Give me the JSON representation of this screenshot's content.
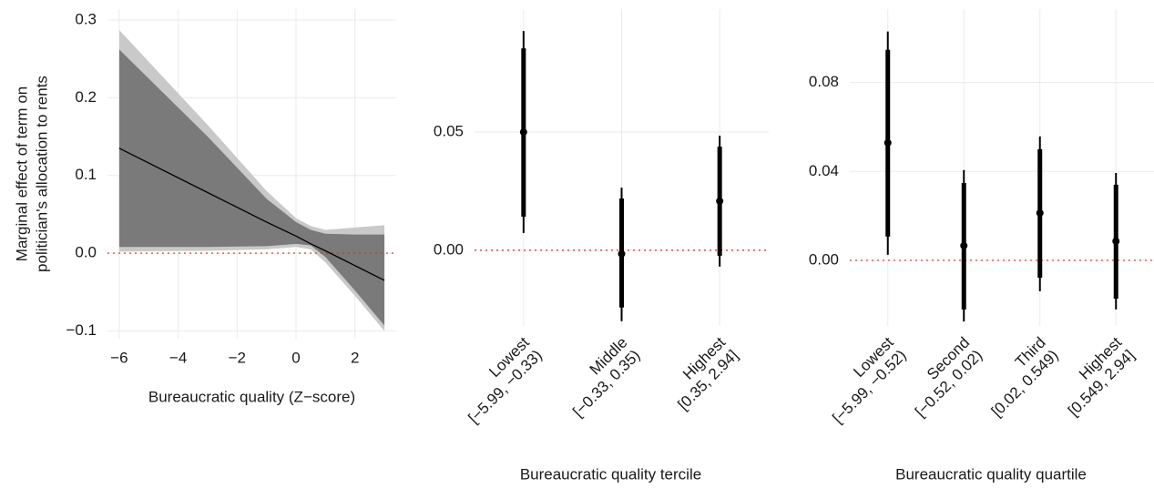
{
  "chart_data": [
    {
      "type": "line",
      "y_label": [
        "Marginal effect of term on",
        "politician's allocation to rents"
      ],
      "x_label": "Bureaucratic quality (Z−score)",
      "x": [
        -6,
        -3,
        -1,
        0,
        0.5,
        1,
        2,
        3
      ],
      "estimate": {
        "values": [
          0.135,
          0.078,
          0.04,
          0.022,
          0.012,
          0.003,
          -0.016,
          -0.035
        ],
        "color": "#000000"
      },
      "bands": [
        {
          "upper": [
            0.287,
            0.165,
            0.08,
            0.045,
            0.035,
            0.03,
            0.033,
            0.036
          ],
          "lower": [
            0.002,
            0.003,
            0.005,
            0.008,
            0.005,
            -0.012,
            -0.055,
            -0.1
          ],
          "color": "#c9c9c9"
        },
        {
          "upper": [
            0.262,
            0.15,
            0.07,
            0.04,
            0.03,
            0.025,
            0.024,
            0.024
          ],
          "lower": [
            0.008,
            0.008,
            0.009,
            0.012,
            0.01,
            -0.005,
            -0.048,
            -0.093
          ],
          "color": "#7a7a7a"
        }
      ],
      "xlim": [
        -6.4,
        3.4
      ],
      "ylim": [
        -0.11,
        0.314
      ],
      "xticks": [
        {
          "value": -6,
          "label": "−6"
        },
        {
          "value": -4,
          "label": "−4"
        },
        {
          "value": -2,
          "label": "−2"
        },
        0,
        2
      ],
      "yticks": [
        {
          "value": -0.1,
          "label": "−0.1"
        },
        {
          "value": 0,
          "label": "0.0"
        },
        0.1,
        0.2,
        0.3
      ],
      "grid": true,
      "reference_line": {
        "value": 0,
        "color": "#d62728"
      }
    },
    {
      "type": "pointrange",
      "x_label": "Bureaucratic quality tercile",
      "categories": [
        "Lowest",
        "Middle",
        "Highest"
      ],
      "category_ranges": [
        "[−5.99, −0.33)",
        "[−0.33, 0.35)",
        "[0.35, 2.94]"
      ],
      "estimates": [
        0.05,
        -0.0015,
        0.0208
      ],
      "inner_lower": [
        0.0142,
        -0.0242,
        -0.0023
      ],
      "inner_upper": [
        0.0854,
        0.0219,
        0.0438
      ],
      "outer_lower": [
        0.0073,
        -0.03,
        -0.0069
      ],
      "outer_upper": [
        0.0927,
        0.0265,
        0.0485
      ],
      "color": "#000000",
      "ylim": [
        -0.032,
        0.102
      ],
      "yticks": [
        {
          "value": 0,
          "label": "0.00"
        },
        0.05
      ],
      "grid": true,
      "reference_line": {
        "value": 0,
        "color": "#d62728"
      }
    },
    {
      "type": "pointrange",
      "x_label": "Bureaucratic quality quartile",
      "categories": [
        "Lowest",
        "Second",
        "Third",
        "Highest"
      ],
      "category_ranges": [
        "[−5.99, −0.52)",
        "[−0.52, 0.02)",
        "[0.02, 0.549)",
        "[0.549, 2.94]"
      ],
      "estimates": [
        0.0529,
        0.0066,
        0.0213,
        0.0086
      ],
      "inner_lower": [
        0.0107,
        -0.0221,
        -0.0078,
        -0.0172
      ],
      "inner_upper": [
        0.0947,
        0.0348,
        0.05,
        0.034
      ],
      "outer_lower": [
        0.0025,
        -0.0275,
        -0.0139,
        -0.0221
      ],
      "outer_upper": [
        0.1029,
        0.0406,
        0.0557,
        0.0393
      ],
      "color": "#000000",
      "ylim": [
        -0.0295,
        0.113
      ],
      "yticks": [
        {
          "value": 0,
          "label": "0.00"
        },
        0.04,
        0.08
      ],
      "grid": true,
      "reference_line": {
        "value": 0,
        "color": "#d62728"
      }
    }
  ]
}
